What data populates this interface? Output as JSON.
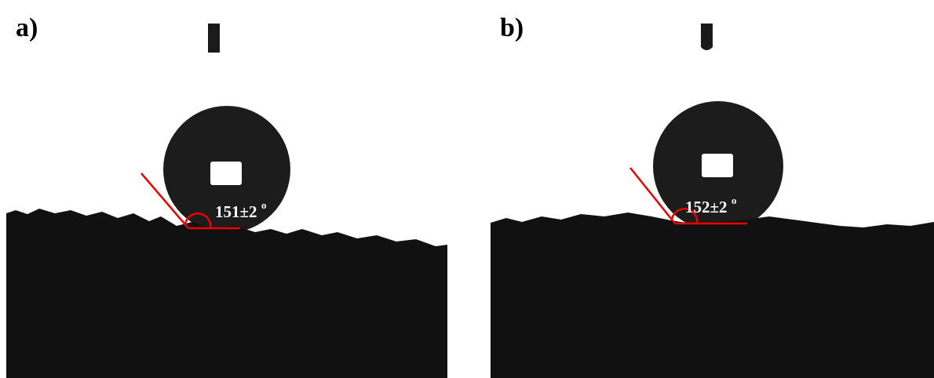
{
  "panels": [
    {
      "label": "a)",
      "angle": "151±2",
      "degree": "o"
    },
    {
      "label": "b)",
      "angle": "152±2",
      "degree": "o"
    }
  ]
}
